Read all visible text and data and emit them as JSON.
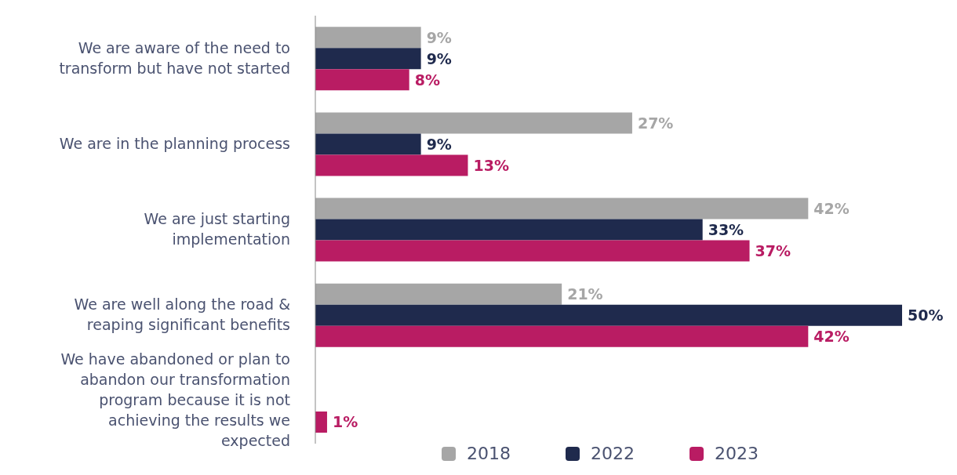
{
  "chart_data": {
    "type": "bar",
    "orientation": "horizontal",
    "categories": [
      "We are aware of the need to transform but have not started",
      "We are in the planning process",
      "We are just starting implementation",
      "We are well along the road & reaping significant benefits",
      "We have abandoned or plan to abandon our transformation program because it is not achieving the results we expected"
    ],
    "series": [
      {
        "name": "2018",
        "color": "#a6a6a6",
        "values": [
          9,
          27,
          42,
          21,
          null
        ],
        "value_labels": [
          "9%",
          "27%",
          "42%",
          "21%",
          null
        ]
      },
      {
        "name": "2022",
        "color": "#1f2a4d",
        "values": [
          9,
          9,
          33,
          50,
          null
        ],
        "value_labels": [
          "9%",
          "9%",
          "33%",
          "50%",
          null
        ]
      },
      {
        "name": "2023",
        "color": "#b91c63",
        "values": [
          8,
          13,
          37,
          42,
          1
        ],
        "value_labels": [
          "8%",
          "13%",
          "37%",
          "42%",
          "1%"
        ]
      }
    ],
    "tick_labels": "y",
    "legend": "bottom",
    "marker": "square"
  }
}
